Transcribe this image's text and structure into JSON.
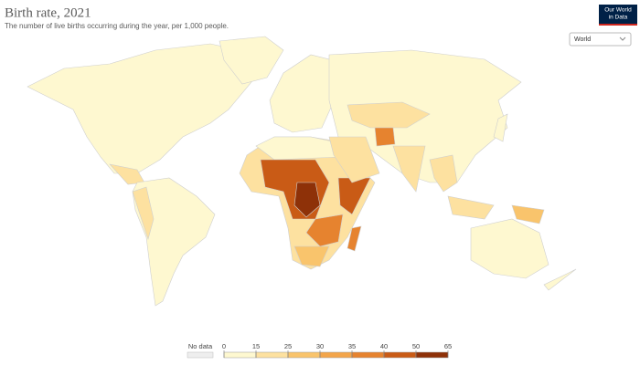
{
  "header": {
    "title": "Birth rate, 2021",
    "subtitle": "The number of live births occurring during the year, per 1,000 people.",
    "logo": [
      "Our World",
      "in Data"
    ]
  },
  "controls": {
    "region_select": "World"
  },
  "legend": {
    "no_data_label": "No data",
    "ticks": [
      0,
      15,
      25,
      30,
      35,
      40,
      50,
      65
    ],
    "colors": [
      "#fef8d0",
      "#fde1a0",
      "#f9c46c",
      "#f3a54a",
      "#e6832f",
      "#c95b16",
      "#8e3108"
    ],
    "no_data_color": "#eeeeee"
  }
}
